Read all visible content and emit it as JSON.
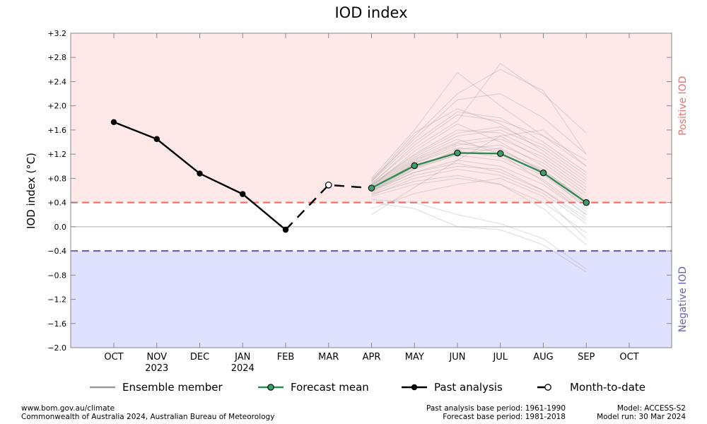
{
  "chart_data": {
    "type": "line",
    "title": "IOD index",
    "ylabel": "IOD index (°C)",
    "ylim": [
      -2.0,
      3.2
    ],
    "yticks": [
      -2.0,
      -1.6,
      -1.2,
      -0.8,
      -0.4,
      0.0,
      0.4,
      0.8,
      1.2,
      1.6,
      2.0,
      2.4,
      2.8,
      3.2
    ],
    "ytick_labels": [
      "−2.0",
      "−1.6",
      "−1.2",
      "−0.8",
      "−0.4",
      "0.0",
      "+0.4",
      "+0.8",
      "+1.2",
      "+1.6",
      "+2.0",
      "+2.4",
      "+2.8",
      "+3.2"
    ],
    "categories": [
      "OCT",
      "NOV",
      "DEC",
      "JAN",
      "FEB",
      "MAR",
      "APR",
      "MAY",
      "JUN",
      "JUL",
      "AUG",
      "SEP",
      "OCT"
    ],
    "category_sublabels": [
      "",
      "2023",
      "",
      "2024",
      "",
      "",
      "",
      "",
      "",
      "",
      "",
      "",
      ""
    ],
    "thresholds": {
      "positive": 0.4,
      "negative": -0.4
    },
    "region_labels": {
      "positive": "Positive IOD",
      "negative": "Negative IOD"
    },
    "colors": {
      "positive_region": "#ffe8e8",
      "negative_region": "#e0e0ff",
      "positive_line": "#f07070",
      "negative_line": "#6a5fb0",
      "positive_text": "#e87070",
      "negative_text": "#6a5fb0",
      "forecast": "#2e8b57",
      "forecast_marker": "#3aa06a",
      "ensemble": "#999999",
      "past": "#000000"
    },
    "series": [
      {
        "name": "Past analysis",
        "x": [
          "OCT",
          "NOV",
          "DEC",
          "JAN",
          "FEB"
        ],
        "values": [
          1.73,
          1.45,
          0.88,
          0.54,
          -0.05
        ]
      },
      {
        "name": "Month-to-date",
        "x": [
          "FEB",
          "MAR",
          "APR"
        ],
        "values": [
          -0.05,
          0.69,
          0.64
        ]
      },
      {
        "name": "Forecast mean",
        "x": [
          "APR",
          "MAY",
          "JUN",
          "JUL",
          "AUG",
          "SEP"
        ],
        "values": [
          0.64,
          1.01,
          1.22,
          1.21,
          0.89,
          0.4
        ]
      }
    ],
    "ensemble": {
      "x": [
        "APR",
        "MAY",
        "JUN",
        "JUL",
        "AUG",
        "SEP"
      ],
      "members": [
        [
          0.62,
          1.05,
          1.3,
          1.25,
          0.95,
          0.4
        ],
        [
          0.7,
          1.2,
          1.6,
          1.55,
          1.2,
          0.7
        ],
        [
          0.55,
          0.85,
          1.0,
          0.95,
          0.6,
          0.1
        ],
        [
          0.75,
          1.4,
          1.9,
          1.8,
          1.4,
          0.9
        ],
        [
          0.6,
          0.9,
          1.1,
          1.0,
          0.7,
          0.2
        ],
        [
          0.8,
          1.6,
          2.55,
          2.0,
          1.5,
          1.0
        ],
        [
          0.5,
          0.7,
          0.8,
          0.7,
          0.3,
          -0.3
        ],
        [
          0.65,
          1.1,
          1.4,
          1.5,
          1.1,
          0.6
        ],
        [
          0.72,
          1.3,
          1.75,
          2.7,
          2.2,
          1.55
        ],
        [
          0.58,
          0.95,
          1.2,
          1.3,
          0.9,
          0.3
        ],
        [
          0.45,
          0.4,
          0.2,
          0.05,
          -0.2,
          -0.7
        ],
        [
          0.68,
          1.15,
          1.5,
          1.6,
          1.3,
          0.8
        ],
        [
          0.6,
          1.0,
          1.25,
          1.15,
          0.85,
          0.35
        ],
        [
          0.78,
          1.45,
          2.1,
          2.2,
          1.8,
          1.2
        ],
        [
          0.52,
          0.8,
          0.95,
          0.85,
          0.55,
          0.05
        ],
        [
          0.66,
          1.25,
          1.7,
          1.4,
          1.0,
          0.5
        ],
        [
          0.4,
          0.3,
          0.0,
          -0.05,
          -0.3,
          -0.75
        ],
        [
          0.7,
          1.35,
          1.85,
          1.75,
          1.5,
          1.1
        ],
        [
          0.63,
          1.05,
          1.35,
          1.45,
          1.15,
          0.65
        ],
        [
          0.57,
          0.9,
          1.05,
          0.9,
          0.6,
          0.15
        ],
        [
          0.74,
          1.5,
          2.2,
          2.6,
          2.25,
          1.2
        ],
        [
          0.61,
          0.98,
          1.18,
          1.1,
          0.78,
          0.25
        ],
        [
          0.69,
          1.18,
          1.55,
          1.65,
          1.35,
          0.85
        ],
        [
          0.54,
          0.75,
          0.85,
          0.7,
          0.4,
          -0.1
        ],
        [
          0.67,
          1.12,
          1.45,
          1.2,
          0.75,
          0.2
        ],
        [
          0.3,
          0.55,
          0.7,
          0.8,
          0.5,
          -0.2
        ],
        [
          0.76,
          1.55,
          1.95,
          1.7,
          1.25,
          0.75
        ],
        [
          0.59,
          0.96,
          1.28,
          1.35,
          1.05,
          0.55
        ],
        [
          0.64,
          1.08,
          1.38,
          1.28,
          0.92,
          0.45
        ],
        [
          0.2,
          0.65,
          1.1,
          1.5,
          1.6,
          1.0
        ]
      ]
    },
    "legend": {
      "placement": "bottom",
      "items": [
        {
          "label": "Ensemble member",
          "style": "ensemble"
        },
        {
          "label": "Forecast mean",
          "style": "forecast"
        },
        {
          "label": "Past analysis",
          "style": "past"
        },
        {
          "label": "Month-to-date",
          "style": "mtd"
        }
      ]
    },
    "grid": false
  },
  "footer": {
    "website": "www.bom.gov.au/climate",
    "copyright": "Commonwealth of Australia 2024, Australian Bureau of Meteorology",
    "past_base": "Past analysis base period: 1961-1990",
    "forecast_base": "Forecast base period: 1981-2018",
    "model": "Model: ACCESS-S2",
    "model_run": "Model run: 30 Mar 2024"
  }
}
